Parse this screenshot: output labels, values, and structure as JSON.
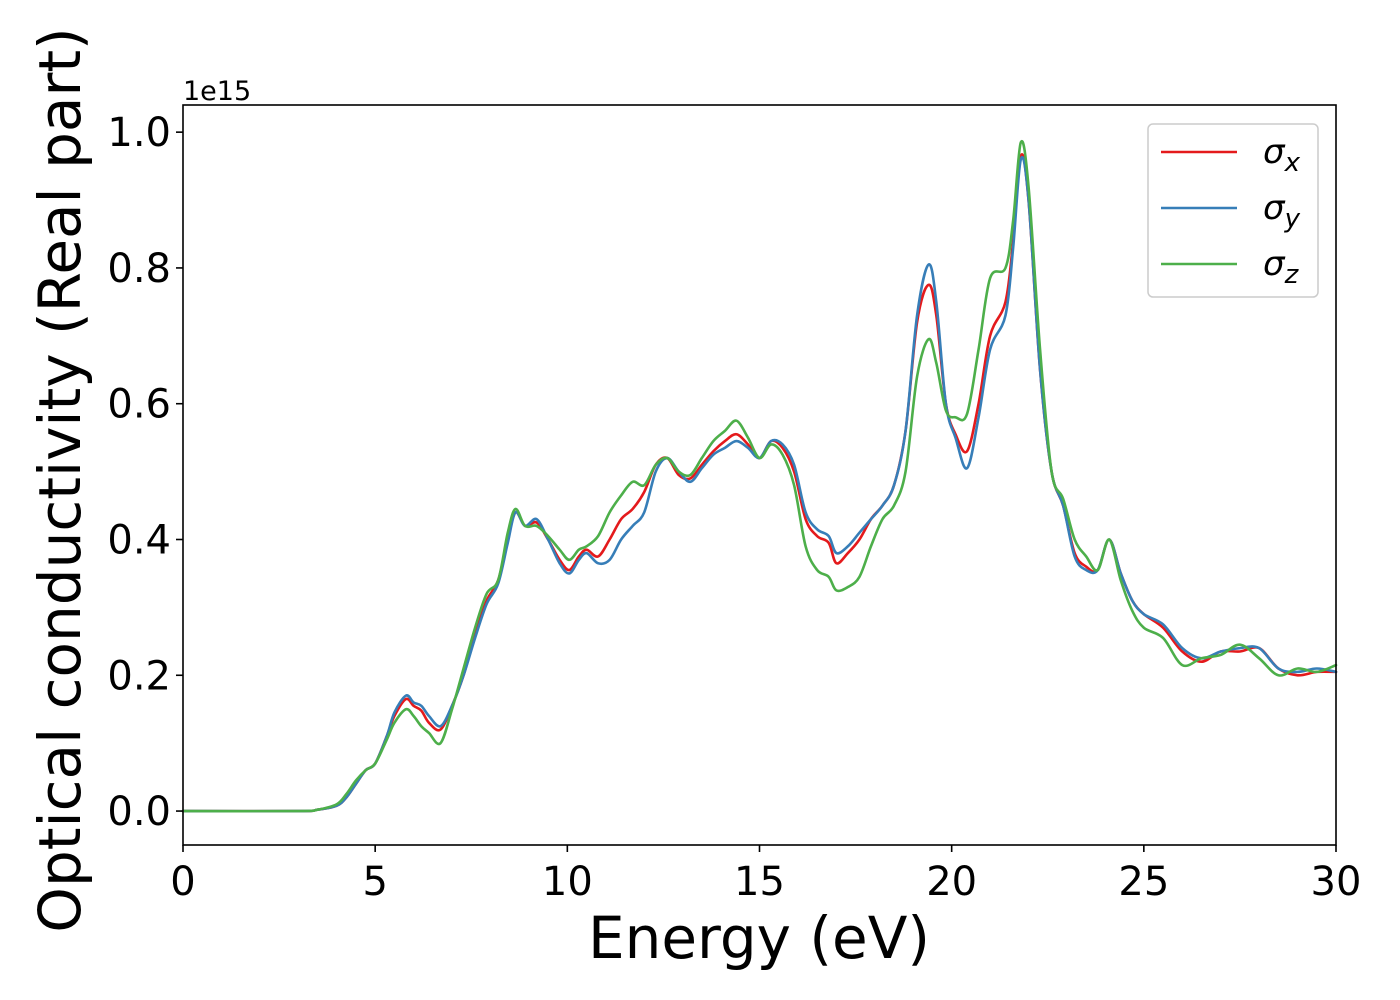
{
  "chart_data": {
    "type": "line",
    "xlabel": "Energy (eV)",
    "ylabel": "Optical conductivity (Real part)",
    "y_offset_label": "1e15",
    "xlim": [
      0,
      30
    ],
    "ylim": [
      -0.05,
      1.04
    ],
    "x_ticks": [
      0,
      5,
      10,
      15,
      20,
      25,
      30
    ],
    "x_tick_labels": [
      "0",
      "5",
      "10",
      "15",
      "20",
      "25",
      "30"
    ],
    "y_ticks": [
      0.0,
      0.2,
      0.4,
      0.6,
      0.8,
      1.0
    ],
    "y_tick_labels": [
      "0.0",
      "0.2",
      "0.4",
      "0.6",
      "0.8",
      "1.0"
    ],
    "grid": false,
    "legend_position": "top-right",
    "series": [
      {
        "name": "σx",
        "legend_symbol": "σ",
        "legend_subscript": "x",
        "color": "#e41a1c",
        "x": [
          0,
          3,
          3.5,
          4,
          4.25,
          4.5,
          4.75,
          5,
          5.3,
          5.5,
          5.8,
          6.0,
          6.2,
          6.4,
          6.7,
          7.0,
          7.3,
          7.6,
          7.9,
          8.2,
          8.45,
          8.65,
          8.9,
          9.2,
          9.5,
          9.8,
          10.05,
          10.3,
          10.5,
          10.8,
          11.1,
          11.4,
          11.7,
          12.0,
          12.3,
          12.6,
          12.9,
          13.2,
          13.5,
          13.8,
          14.1,
          14.4,
          14.7,
          15.0,
          15.3,
          15.6,
          15.9,
          16.2,
          16.5,
          16.8,
          17.0,
          17.3,
          17.6,
          17.9,
          18.2,
          18.5,
          18.8,
          19.1,
          19.4,
          19.6,
          19.85,
          20.1,
          20.4,
          20.7,
          21.0,
          21.4,
          21.6,
          21.8,
          22.0,
          22.3,
          22.6,
          22.9,
          23.2,
          23.5,
          23.8,
          24.1,
          24.4,
          24.7,
          25.0,
          25.5,
          26.0,
          26.5,
          27.0,
          27.5,
          28.0,
          28.5,
          29.0,
          29.5,
          30.0
        ],
        "y": [
          0.0,
          0.0,
          0.002,
          0.008,
          0.02,
          0.04,
          0.06,
          0.07,
          0.11,
          0.14,
          0.165,
          0.155,
          0.148,
          0.13,
          0.12,
          0.155,
          0.2,
          0.26,
          0.31,
          0.34,
          0.4,
          0.44,
          0.42,
          0.425,
          0.4,
          0.37,
          0.355,
          0.375,
          0.385,
          0.375,
          0.4,
          0.43,
          0.445,
          0.47,
          0.51,
          0.52,
          0.495,
          0.49,
          0.51,
          0.53,
          0.545,
          0.555,
          0.54,
          0.52,
          0.545,
          0.535,
          0.5,
          0.43,
          0.405,
          0.395,
          0.365,
          0.38,
          0.4,
          0.43,
          0.45,
          0.48,
          0.56,
          0.72,
          0.775,
          0.73,
          0.6,
          0.555,
          0.53,
          0.6,
          0.7,
          0.75,
          0.84,
          0.965,
          0.9,
          0.65,
          0.5,
          0.45,
          0.38,
          0.36,
          0.355,
          0.4,
          0.35,
          0.31,
          0.29,
          0.27,
          0.235,
          0.22,
          0.235,
          0.235,
          0.24,
          0.21,
          0.2,
          0.205,
          0.205
        ]
      },
      {
        "name": "σy",
        "legend_symbol": "σ",
        "legend_subscript": "y",
        "color": "#377eb8",
        "x": [
          0,
          3,
          3.5,
          4,
          4.25,
          4.5,
          4.75,
          5,
          5.3,
          5.5,
          5.8,
          6.0,
          6.2,
          6.4,
          6.7,
          7.0,
          7.3,
          7.6,
          7.9,
          8.2,
          8.45,
          8.65,
          8.9,
          9.2,
          9.5,
          9.8,
          10.05,
          10.3,
          10.5,
          10.8,
          11.1,
          11.4,
          11.7,
          12.0,
          12.3,
          12.6,
          12.9,
          13.2,
          13.5,
          13.8,
          14.1,
          14.4,
          14.7,
          15.0,
          15.3,
          15.6,
          15.9,
          16.2,
          16.5,
          16.8,
          17.0,
          17.3,
          17.6,
          17.9,
          18.2,
          18.5,
          18.8,
          19.1,
          19.4,
          19.6,
          19.85,
          20.1,
          20.4,
          20.7,
          21.0,
          21.4,
          21.6,
          21.8,
          22.0,
          22.3,
          22.6,
          22.9,
          23.2,
          23.5,
          23.8,
          24.1,
          24.4,
          24.7,
          25.0,
          25.5,
          26.0,
          26.5,
          27.0,
          27.5,
          28.0,
          28.5,
          29.0,
          29.5,
          30.0
        ],
        "y": [
          0.0,
          0.0,
          0.002,
          0.008,
          0.02,
          0.04,
          0.06,
          0.07,
          0.11,
          0.145,
          0.17,
          0.16,
          0.155,
          0.14,
          0.125,
          0.155,
          0.2,
          0.255,
          0.305,
          0.335,
          0.395,
          0.44,
          0.42,
          0.43,
          0.4,
          0.365,
          0.35,
          0.37,
          0.38,
          0.365,
          0.37,
          0.4,
          0.42,
          0.44,
          0.5,
          0.52,
          0.5,
          0.485,
          0.505,
          0.525,
          0.535,
          0.545,
          0.535,
          0.52,
          0.545,
          0.54,
          0.51,
          0.44,
          0.415,
          0.405,
          0.38,
          0.39,
          0.41,
          0.43,
          0.45,
          0.48,
          0.56,
          0.73,
          0.805,
          0.75,
          0.6,
          0.55,
          0.505,
          0.58,
          0.68,
          0.73,
          0.83,
          0.96,
          0.9,
          0.65,
          0.5,
          0.45,
          0.375,
          0.355,
          0.355,
          0.4,
          0.35,
          0.31,
          0.29,
          0.275,
          0.24,
          0.225,
          0.235,
          0.24,
          0.24,
          0.21,
          0.205,
          0.21,
          0.205
        ]
      },
      {
        "name": "σz",
        "legend_symbol": "σ",
        "legend_subscript": "z",
        "color": "#4daf4a",
        "x": [
          0,
          3,
          3.5,
          4,
          4.25,
          4.5,
          4.75,
          5,
          5.3,
          5.5,
          5.8,
          6.0,
          6.2,
          6.4,
          6.7,
          7.0,
          7.3,
          7.6,
          7.9,
          8.2,
          8.45,
          8.65,
          8.9,
          9.2,
          9.5,
          9.8,
          10.05,
          10.3,
          10.5,
          10.8,
          11.1,
          11.4,
          11.7,
          12.0,
          12.3,
          12.6,
          12.9,
          13.2,
          13.5,
          13.8,
          14.1,
          14.4,
          14.7,
          15.0,
          15.3,
          15.6,
          15.9,
          16.2,
          16.5,
          16.8,
          17.0,
          17.3,
          17.6,
          17.9,
          18.2,
          18.5,
          18.8,
          19.1,
          19.4,
          19.6,
          19.85,
          20.1,
          20.4,
          20.7,
          21.0,
          21.4,
          21.6,
          21.8,
          22.0,
          22.3,
          22.6,
          22.9,
          23.2,
          23.5,
          23.8,
          24.1,
          24.4,
          24.7,
          25.0,
          25.5,
          26.0,
          26.5,
          27.0,
          27.5,
          28.0,
          28.5,
          29.0,
          29.5,
          30.0
        ],
        "y": [
          0.0,
          0.0,
          0.002,
          0.01,
          0.025,
          0.045,
          0.06,
          0.07,
          0.105,
          0.13,
          0.15,
          0.14,
          0.125,
          0.115,
          0.1,
          0.15,
          0.21,
          0.27,
          0.32,
          0.34,
          0.41,
          0.445,
          0.42,
          0.42,
          0.405,
          0.385,
          0.37,
          0.385,
          0.39,
          0.405,
          0.44,
          0.465,
          0.485,
          0.48,
          0.51,
          0.52,
          0.5,
          0.495,
          0.52,
          0.545,
          0.56,
          0.575,
          0.55,
          0.52,
          0.54,
          0.525,
          0.48,
          0.39,
          0.355,
          0.345,
          0.325,
          0.33,
          0.345,
          0.39,
          0.43,
          0.45,
          0.5,
          0.64,
          0.695,
          0.66,
          0.59,
          0.58,
          0.585,
          0.68,
          0.785,
          0.8,
          0.87,
          0.985,
          0.92,
          0.68,
          0.5,
          0.46,
          0.4,
          0.375,
          0.355,
          0.4,
          0.34,
          0.295,
          0.27,
          0.255,
          0.215,
          0.225,
          0.23,
          0.245,
          0.225,
          0.2,
          0.21,
          0.205,
          0.215
        ]
      }
    ]
  }
}
